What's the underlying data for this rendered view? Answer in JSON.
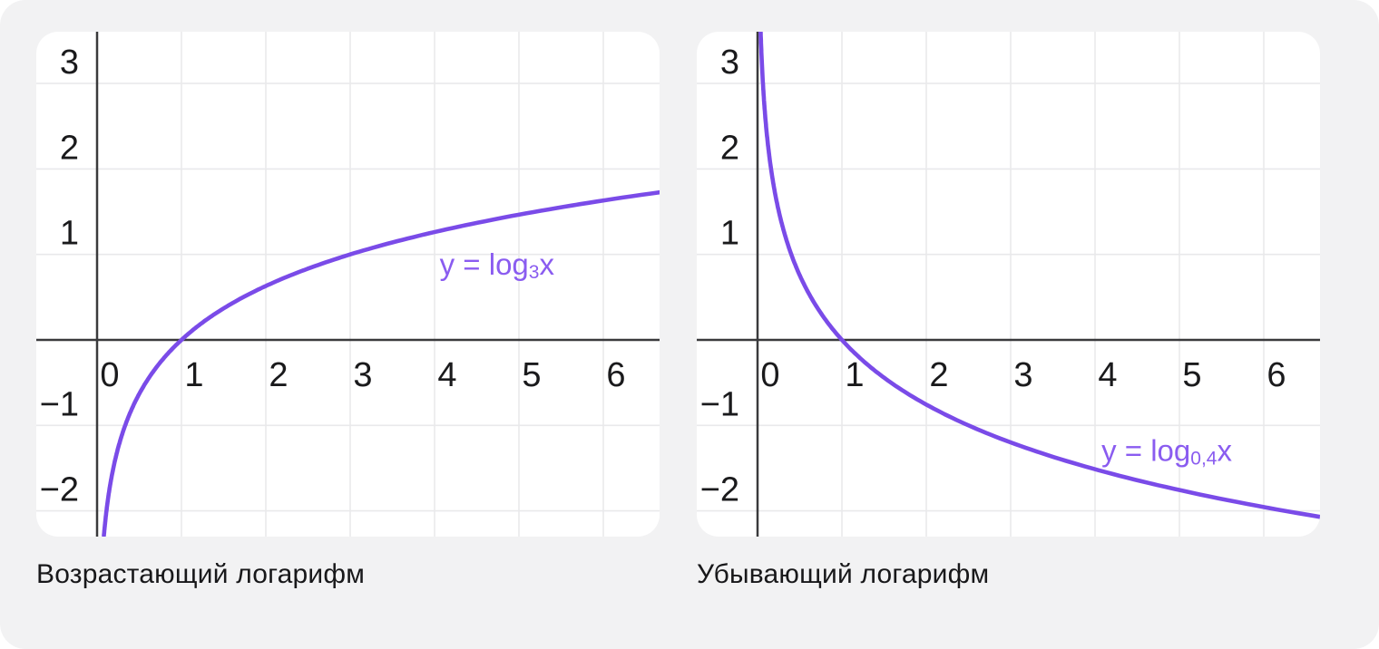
{
  "colors": {
    "page_background": "#f2f2f3",
    "card_background": "#ffffff",
    "grid_line": "#e9e9eb",
    "axis_line": "#3a3a3c",
    "tick_text": "#1a1a1c",
    "caption_text": "#18181a",
    "curve": "#7a4be8",
    "curve_label_text": "#8a5cf0"
  },
  "chart_data": [
    {
      "type": "line",
      "title": "",
      "function": "y = log_3(x)",
      "log_base": 3,
      "caption": "Возрастающий логарифм",
      "curve_label": {
        "prefix": "y = log",
        "subscript": "3",
        "suffix": "x"
      },
      "curve_label_anchor": {
        "x": 4.74,
        "y": 0.89
      },
      "x_ticks": [
        0,
        1,
        2,
        3,
        4,
        5,
        6
      ],
      "y_ticks": [
        3,
        2,
        1,
        -1,
        -2
      ],
      "xlim": [
        -0.72,
        6.67
      ],
      "ylim": [
        -2.29,
        3.61
      ],
      "grid": true,
      "key_points": [
        {
          "x": 1,
          "y": 0
        },
        {
          "x": 3,
          "y": 1
        },
        {
          "x": 6.67,
          "y": 1.73
        }
      ]
    },
    {
      "type": "line",
      "title": "",
      "function": "y = log_0.4(x)",
      "log_base": 0.4,
      "caption": "Убывающий логарифм",
      "curve_label": {
        "prefix": "y = log",
        "subscript": "0,4",
        "suffix": "x"
      },
      "curve_label_anchor": {
        "x": 4.85,
        "y": -1.29
      },
      "x_ticks": [
        0,
        1,
        2,
        3,
        4,
        5,
        6
      ],
      "y_ticks": [
        3,
        2,
        1,
        -1,
        -2
      ],
      "xlim": [
        -0.72,
        6.67
      ],
      "ylim": [
        -2.29,
        3.61
      ],
      "grid": true,
      "key_points": [
        {
          "x": 1,
          "y": 0
        },
        {
          "x": 0.4,
          "y": 1
        },
        {
          "x": 6.67,
          "y": -2.07
        }
      ]
    }
  ]
}
